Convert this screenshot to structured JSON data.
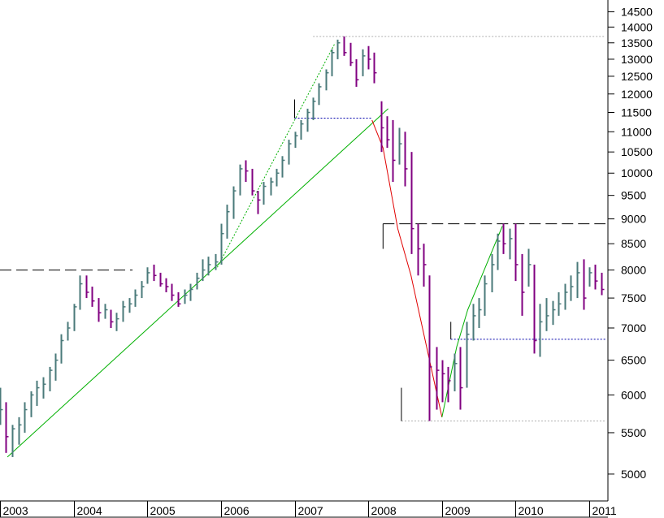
{
  "chart_data": {
    "type": "ohlc",
    "scale": "log",
    "ylim": [
      4700,
      14900
    ],
    "xlim": [
      2003.0,
      2011.22
    ],
    "ytick_labels": [
      "14500",
      "14000",
      "13500",
      "13000",
      "12500",
      "12000",
      "11500",
      "11000",
      "10500",
      "10000",
      "9500",
      "9000",
      "8500",
      "8000",
      "7500",
      "7000",
      "6500",
      "6000",
      "5500",
      "5000"
    ],
    "xtick_labels": [
      "2003",
      "2004",
      "2005",
      "2006",
      "2007",
      "2008",
      "2009",
      "2010",
      "2011"
    ],
    "colors": {
      "up": "#4a7a7a",
      "down": "#800080",
      "trend_green": "#00b000",
      "trend_red": "#e00000",
      "ref_blue": "#0000aa",
      "ref_gray": "#b0b0b0",
      "ref_dark": "#000000"
    },
    "reference_lines": [
      {
        "kind": "dashed",
        "color": "#000000",
        "y": 8000,
        "x_from": 2003.0,
        "x_to": 2004.8
      },
      {
        "kind": "dashed",
        "color": "#000000",
        "y": 8900,
        "x_from": 2008.2,
        "x_to": 2011.22
      },
      {
        "kind": "dotted",
        "color": "#b0b0b0",
        "y": 13700,
        "x_from": 2007.25,
        "x_to": 2011.22
      },
      {
        "kind": "dotted",
        "color": "#b0b0b0",
        "y": 5650,
        "x_from": 2008.45,
        "x_to": 2011.22
      },
      {
        "kind": "dotted",
        "color": "#0000aa",
        "y": 11350,
        "x_from": 2007.0,
        "x_to": 2008.05
      },
      {
        "kind": "dotted",
        "color": "#0000aa",
        "y": 6820,
        "x_from": 2009.12,
        "x_to": 2011.22
      }
    ],
    "trend_lines": [
      {
        "kind": "solid",
        "color": "#00b000",
        "points": [
          [
            2003.1,
            5200
          ],
          [
            2008.27,
            11600
          ]
        ]
      },
      {
        "kind": "dotted",
        "color": "#00b000",
        "points": [
          [
            2005.95,
            8050
          ],
          [
            2007.55,
            13500
          ]
        ]
      },
      {
        "kind": "solid",
        "color": "#e00000",
        "points": [
          [
            2008.05,
            11300
          ],
          [
            2008.2,
            10600
          ],
          [
            2008.4,
            8800
          ],
          [
            2008.58,
            7900
          ],
          [
            2009.0,
            5700
          ]
        ]
      },
      {
        "kind": "solid",
        "color": "#00b000",
        "points": [
          [
            2009.0,
            5700
          ],
          [
            2009.2,
            6700
          ],
          [
            2009.35,
            7300
          ],
          [
            2009.82,
            8850
          ]
        ]
      },
      {
        "kind": "solid",
        "color": "#000000",
        "points": [
          [
            2007.0,
            11350
          ],
          [
            2007.0,
            11850
          ]
        ]
      },
      {
        "kind": "solid",
        "color": "#000000",
        "points": [
          [
            2008.2,
            8900
          ],
          [
            2008.2,
            8400
          ]
        ]
      },
      {
        "kind": "solid",
        "color": "#000000",
        "points": [
          [
            2008.45,
            5650
          ],
          [
            2008.45,
            6100
          ]
        ]
      },
      {
        "kind": "solid",
        "color": "#000000",
        "points": [
          [
            2009.12,
            6820
          ],
          [
            2009.12,
            7100
          ]
        ]
      }
    ],
    "bars": [
      [
        2003.0,
        6100,
        5600,
        5800
      ],
      [
        2003.08,
        5900,
        5250,
        5450
      ],
      [
        2003.17,
        5600,
        5200,
        5550
      ],
      [
        2003.25,
        5700,
        5350,
        5600
      ],
      [
        2003.33,
        5900,
        5500,
        5800
      ],
      [
        2003.42,
        6050,
        5700,
        6000
      ],
      [
        2003.5,
        6200,
        5850,
        6100
      ],
      [
        2003.58,
        6250,
        5950,
        6150
      ],
      [
        2003.67,
        6400,
        6050,
        6350
      ],
      [
        2003.75,
        6600,
        6200,
        6500
      ],
      [
        2003.83,
        6900,
        6450,
        6800
      ],
      [
        2003.92,
        7100,
        6800,
        7000
      ],
      [
        2004.0,
        7400,
        6950,
        7350
      ],
      [
        2004.08,
        7900,
        7300,
        7750
      ],
      [
        2004.17,
        7900,
        7500,
        7600
      ],
      [
        2004.25,
        7700,
        7350,
        7450
      ],
      [
        2004.33,
        7500,
        7100,
        7250
      ],
      [
        2004.42,
        7400,
        7150,
        7300
      ],
      [
        2004.5,
        7300,
        7000,
        7100
      ],
      [
        2004.58,
        7250,
        6950,
        7150
      ],
      [
        2004.67,
        7450,
        7100,
        7350
      ],
      [
        2004.75,
        7500,
        7250,
        7400
      ],
      [
        2004.83,
        7650,
        7350,
        7550
      ],
      [
        2004.92,
        7800,
        7500,
        7700
      ],
      [
        2005.0,
        8050,
        7750,
        7950
      ],
      [
        2005.08,
        8100,
        7800,
        7900
      ],
      [
        2005.17,
        7950,
        7700,
        7750
      ],
      [
        2005.25,
        7850,
        7600,
        7700
      ],
      [
        2005.33,
        7750,
        7450,
        7550
      ],
      [
        2005.42,
        7600,
        7350,
        7400
      ],
      [
        2005.5,
        7650,
        7400,
        7550
      ],
      [
        2005.58,
        7750,
        7450,
        7650
      ],
      [
        2005.67,
        7950,
        7650,
        7850
      ],
      [
        2005.75,
        8200,
        7800,
        8000
      ],
      [
        2005.83,
        8250,
        7900,
        8100
      ],
      [
        2005.92,
        8300,
        8000,
        8150
      ],
      [
        2006.0,
        8900,
        8100,
        8700
      ],
      [
        2006.08,
        9300,
        8600,
        9150
      ],
      [
        2006.17,
        9700,
        9000,
        9600
      ],
      [
        2006.25,
        10200,
        9500,
        10100
      ],
      [
        2006.33,
        10300,
        9800,
        10050
      ],
      [
        2006.42,
        10100,
        9500,
        9600
      ],
      [
        2006.5,
        9600,
        9100,
        9400
      ],
      [
        2006.58,
        9800,
        9300,
        9700
      ],
      [
        2006.67,
        9900,
        9500,
        9800
      ],
      [
        2006.75,
        10100,
        9700,
        10000
      ],
      [
        2006.83,
        10400,
        9900,
        10300
      ],
      [
        2006.92,
        10800,
        10200,
        10700
      ],
      [
        2007.0,
        11000,
        10600,
        10900
      ],
      [
        2007.08,
        11300,
        10800,
        11200
      ],
      [
        2007.17,
        11600,
        11000,
        11500
      ],
      [
        2007.25,
        11900,
        11300,
        11800
      ],
      [
        2007.33,
        12300,
        11700,
        12200
      ],
      [
        2007.42,
        12700,
        12100,
        12600
      ],
      [
        2007.5,
        13300,
        12500,
        13200
      ],
      [
        2007.58,
        13600,
        13000,
        13500
      ],
      [
        2007.67,
        13700,
        13100,
        13200
      ],
      [
        2007.75,
        13500,
        12800,
        12900
      ],
      [
        2007.83,
        13000,
        12200,
        12400
      ],
      [
        2007.92,
        13300,
        12500,
        13100
      ],
      [
        2008.0,
        13400,
        12700,
        13000
      ],
      [
        2008.08,
        13200,
        12300,
        12600
      ],
      [
        2008.17,
        11800,
        10500,
        11100
      ],
      [
        2008.25,
        11400,
        10600,
        10800
      ],
      [
        2008.33,
        11300,
        9800,
        10300
      ],
      [
        2008.42,
        11100,
        10200,
        10700
      ],
      [
        2008.5,
        11000,
        9700,
        10100
      ],
      [
        2008.58,
        10500,
        8300,
        8800
      ],
      [
        2008.67,
        8900,
        7900,
        8400
      ],
      [
        2008.75,
        8500,
        7700,
        8100
      ],
      [
        2008.83,
        7900,
        5650,
        6400
      ],
      [
        2008.92,
        6700,
        5800,
        6350
      ],
      [
        2009.0,
        6500,
        5900,
        6300
      ],
      [
        2009.08,
        6400,
        5900,
        6200
      ],
      [
        2009.17,
        6600,
        6050,
        6450
      ],
      [
        2009.25,
        6700,
        5800,
        6100
      ],
      [
        2009.33,
        7100,
        6100,
        6900
      ],
      [
        2009.42,
        7400,
        6800,
        7200
      ],
      [
        2009.5,
        7500,
        7000,
        7300
      ],
      [
        2009.58,
        7900,
        7200,
        7750
      ],
      [
        2009.67,
        8300,
        7600,
        8100
      ],
      [
        2009.75,
        8700,
        8000,
        8550
      ],
      [
        2009.83,
        8900,
        8300,
        8500
      ],
      [
        2009.92,
        8800,
        8200,
        8600
      ],
      [
        2010.0,
        8900,
        7800,
        8100
      ],
      [
        2010.08,
        8300,
        7200,
        7600
      ],
      [
        2010.17,
        8400,
        7700,
        8100
      ],
      [
        2010.25,
        8100,
        6600,
        6800
      ],
      [
        2010.33,
        7400,
        6550,
        7100
      ],
      [
        2010.42,
        7500,
        6950,
        7200
      ],
      [
        2010.5,
        7450,
        7050,
        7300
      ],
      [
        2010.58,
        7600,
        7200,
        7400
      ],
      [
        2010.67,
        7750,
        7300,
        7600
      ],
      [
        2010.75,
        7900,
        7450,
        7700
      ],
      [
        2010.83,
        8150,
        7500,
        7950
      ],
      [
        2010.92,
        8200,
        7300,
        7500
      ],
      [
        2011.0,
        8050,
        7700,
        7950
      ],
      [
        2011.08,
        8100,
        7650,
        7800
      ],
      [
        2011.17,
        7950,
        7550,
        7650
      ]
    ]
  }
}
